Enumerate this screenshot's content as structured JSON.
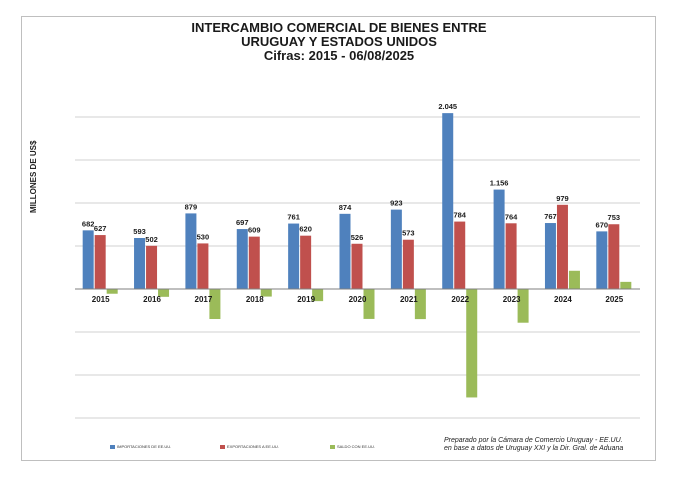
{
  "title": {
    "line1": "INTERCAMBIO COMERCIAL DE BIENES ENTRE",
    "line2": "URUGUAY Y ESTADOS UNIDOS",
    "line3": "Cifras:  2015 - 06/08/2025"
  },
  "credit": {
    "line1": "Preparado por la Cámara de Comercio Uruguay - EE.UU.",
    "line2": "en base  a datos de Uruguay XXI y la Dir. Gral. de Aduana"
  },
  "chart_data": {
    "type": "bar",
    "title": "INTERCAMBIO COMERCIAL DE BIENES ENTRE URUGUAY Y ESTADOS UNIDOS Cifras:  2015 - 06/08/2025",
    "xlabel": "",
    "ylabel": "MILLONES DE US$",
    "categories": [
      "2015",
      "2016",
      "2017",
      "2018",
      "2019",
      "2020",
      "2021",
      "2022",
      "2023",
      "2024",
      "2025"
    ],
    "ylim": [
      -1300,
      2100
    ],
    "grid": true,
    "legend_position": "bottom",
    "series": [
      {
        "name": "IMPORTACIONES DE EE.UU.",
        "color": "#4f81bd",
        "values": [
          682,
          593,
          879,
          697,
          761,
          874,
          923,
          2045,
          1156,
          767,
          670
        ],
        "labels": [
          "682",
          "593",
          "879",
          "697",
          "761",
          "874",
          "923",
          "2.045",
          "1.156",
          "767",
          "670"
        ]
      },
      {
        "name": "EXPORTACIONES A EE.UU.",
        "color": "#c0504d",
        "values": [
          627,
          502,
          530,
          609,
          620,
          526,
          573,
          784,
          764,
          979,
          753
        ],
        "labels": [
          "627",
          "502",
          "530",
          "609",
          "620",
          "526",
          "573",
          "784",
          "764",
          "979",
          "753"
        ]
      },
      {
        "name": "SALDO CON EE.UU.",
        "color": "#9bbb59",
        "values": [
          -55,
          -91,
          -349,
          -88,
          -141,
          -348,
          -350,
          -1261,
          -392,
          212,
          83
        ],
        "labels": []
      }
    ]
  }
}
